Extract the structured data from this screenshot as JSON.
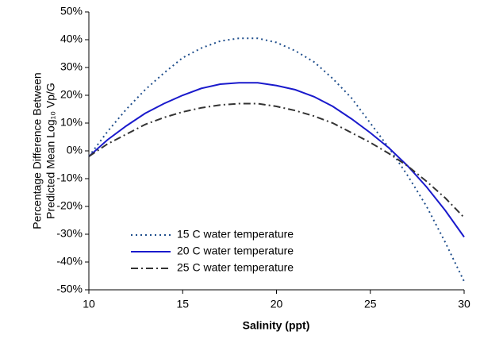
{
  "chart_data": {
    "type": "line",
    "xlabel": "Salinity (ppt)",
    "ylabel": [
      "Percentage Difference Between",
      "Predicted Mean Log₁₀ Vp/G"
    ],
    "x": [
      10,
      11,
      12,
      13,
      14,
      15,
      16,
      17,
      18,
      19,
      20,
      21,
      22,
      23,
      24,
      25,
      26,
      27,
      28,
      29,
      30
    ],
    "series": [
      {
        "name": "15 C water temperature",
        "color": "#1f4e8c",
        "dash": "2,4",
        "values": [
          -2,
          7,
          15,
          22,
          28,
          33.5,
          37,
          39.5,
          40.5,
          40.5,
          39,
          36,
          32,
          26,
          19,
          10,
          1,
          -9,
          -20,
          -33,
          -47
        ]
      },
      {
        "name": "20 C water temperature",
        "color": "#1a1acc",
        "dash": "none",
        "values": [
          -2,
          4,
          9,
          13.5,
          17,
          20,
          22.5,
          24,
          24.5,
          24.5,
          23.5,
          22,
          19.5,
          16,
          11.5,
          6.5,
          1,
          -5.5,
          -13,
          -21.5,
          -31
        ]
      },
      {
        "name": "25 C water temperature",
        "color": "#333333",
        "dash": "9,4,2,4",
        "values": [
          -2,
          2.5,
          6,
          9.5,
          12,
          14,
          15.5,
          16.5,
          17,
          17,
          16,
          14.5,
          12.5,
          10,
          6.5,
          3,
          -1,
          -5.5,
          -11,
          -17,
          -24
        ]
      }
    ],
    "xlim": [
      10,
      30
    ],
    "xticks": [
      10,
      15,
      20,
      25,
      30
    ],
    "ylim": [
      -50,
      50
    ],
    "yticks": [
      {
        "value": -50,
        "label": "-50%"
      },
      {
        "value": -40,
        "label": "-40%"
      },
      {
        "value": -30,
        "label": "-30%"
      },
      {
        "value": -20,
        "label": "-20%"
      },
      {
        "value": -10,
        "label": "-10%"
      },
      {
        "value": 0,
        "label": "0%"
      },
      {
        "value": 10,
        "label": "10%"
      },
      {
        "value": 20,
        "label": "20%"
      },
      {
        "value": 30,
        "label": "30%"
      },
      {
        "value": 40,
        "label": "40%"
      },
      {
        "value": 50,
        "label": "50%"
      }
    ],
    "legend": "lower-left"
  }
}
